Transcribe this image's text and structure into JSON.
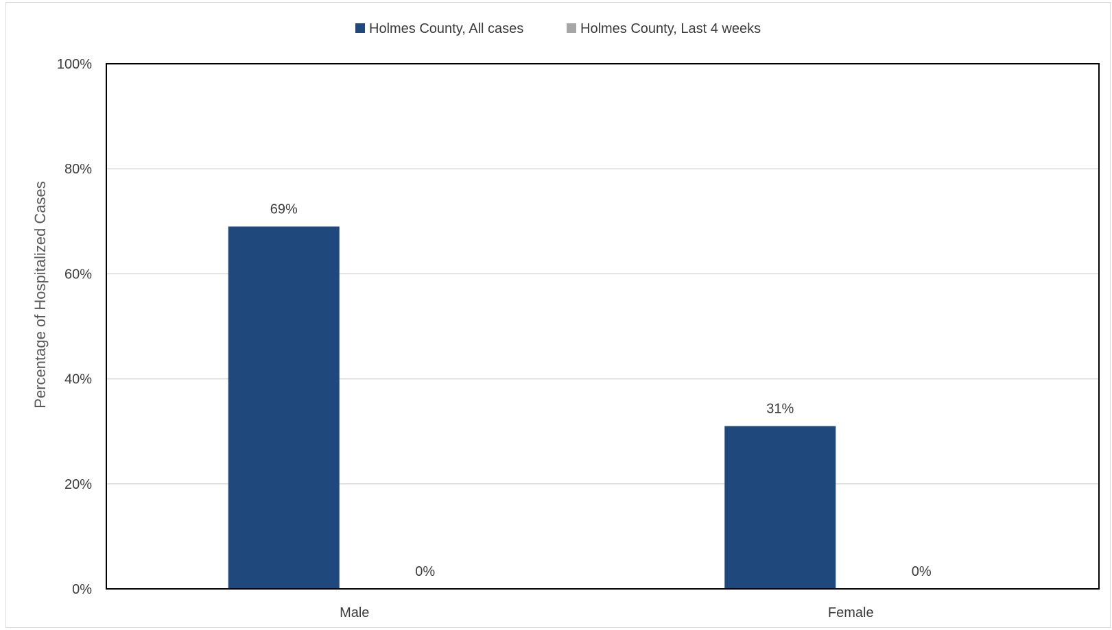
{
  "chart_data": {
    "type": "bar",
    "title": "",
    "xlabel": "",
    "ylabel": "Percentage of Hospitalized Cases",
    "categories": [
      "Male",
      "Female"
    ],
    "series": [
      {
        "name": "Holmes County, All cases",
        "values": [
          69,
          31
        ],
        "labels": [
          "69%",
          "31%"
        ],
        "color": "#1f497d"
      },
      {
        "name": "Holmes County, Last 4 weeks",
        "values": [
          0,
          0
        ],
        "labels": [
          "0%",
          "0%"
        ],
        "color": "#a6a6a6"
      }
    ],
    "ylim": [
      0,
      100
    ],
    "yticks": [
      0,
      20,
      40,
      60,
      80,
      100
    ],
    "ytick_labels": [
      "0%",
      "20%",
      "40%",
      "60%",
      "80%",
      "100%"
    ],
    "grid": true,
    "legend_position": "top"
  }
}
